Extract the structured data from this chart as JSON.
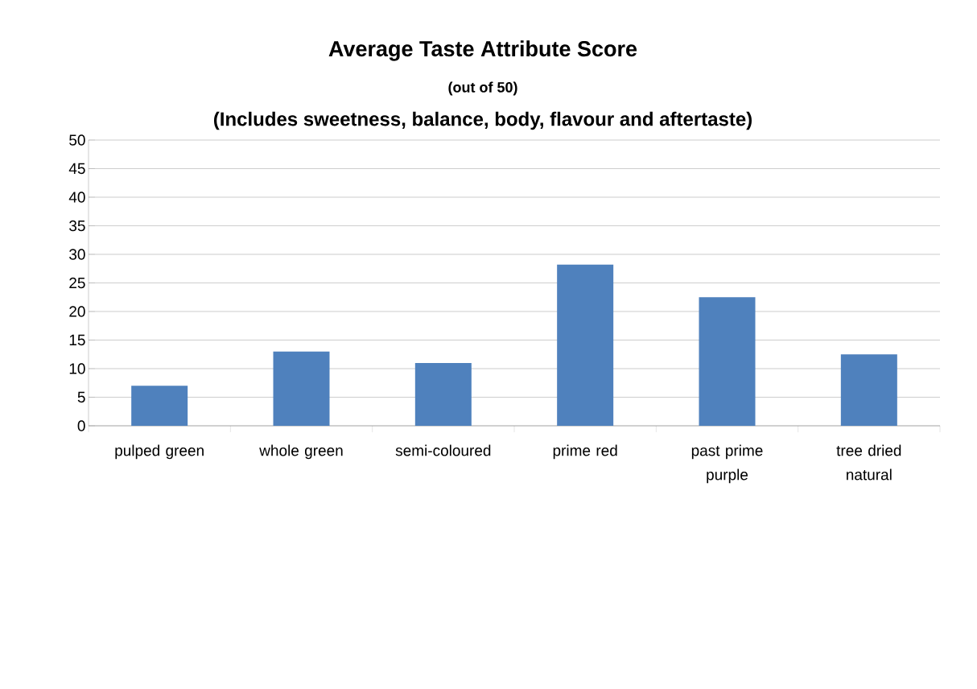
{
  "chart_data": {
    "type": "bar",
    "title": "Average Taste Attribute Score",
    "subtitle": "(out of 50)",
    "annotations": [
      "(Includes sweetness, balance, body, flavour and aftertaste)"
    ],
    "categories": [
      "pulped green",
      "whole green",
      "semi-coloured",
      "prime red",
      "past prime purple",
      "tree dried natural"
    ],
    "values": [
      7,
      13,
      11,
      28.2,
      22.5,
      12.5
    ],
    "color": "#4f81bd",
    "ylim": [
      0,
      50
    ],
    "yticks": [
      0,
      5,
      10,
      15,
      20,
      25,
      30,
      35,
      40,
      45,
      50
    ],
    "grid": "y"
  }
}
